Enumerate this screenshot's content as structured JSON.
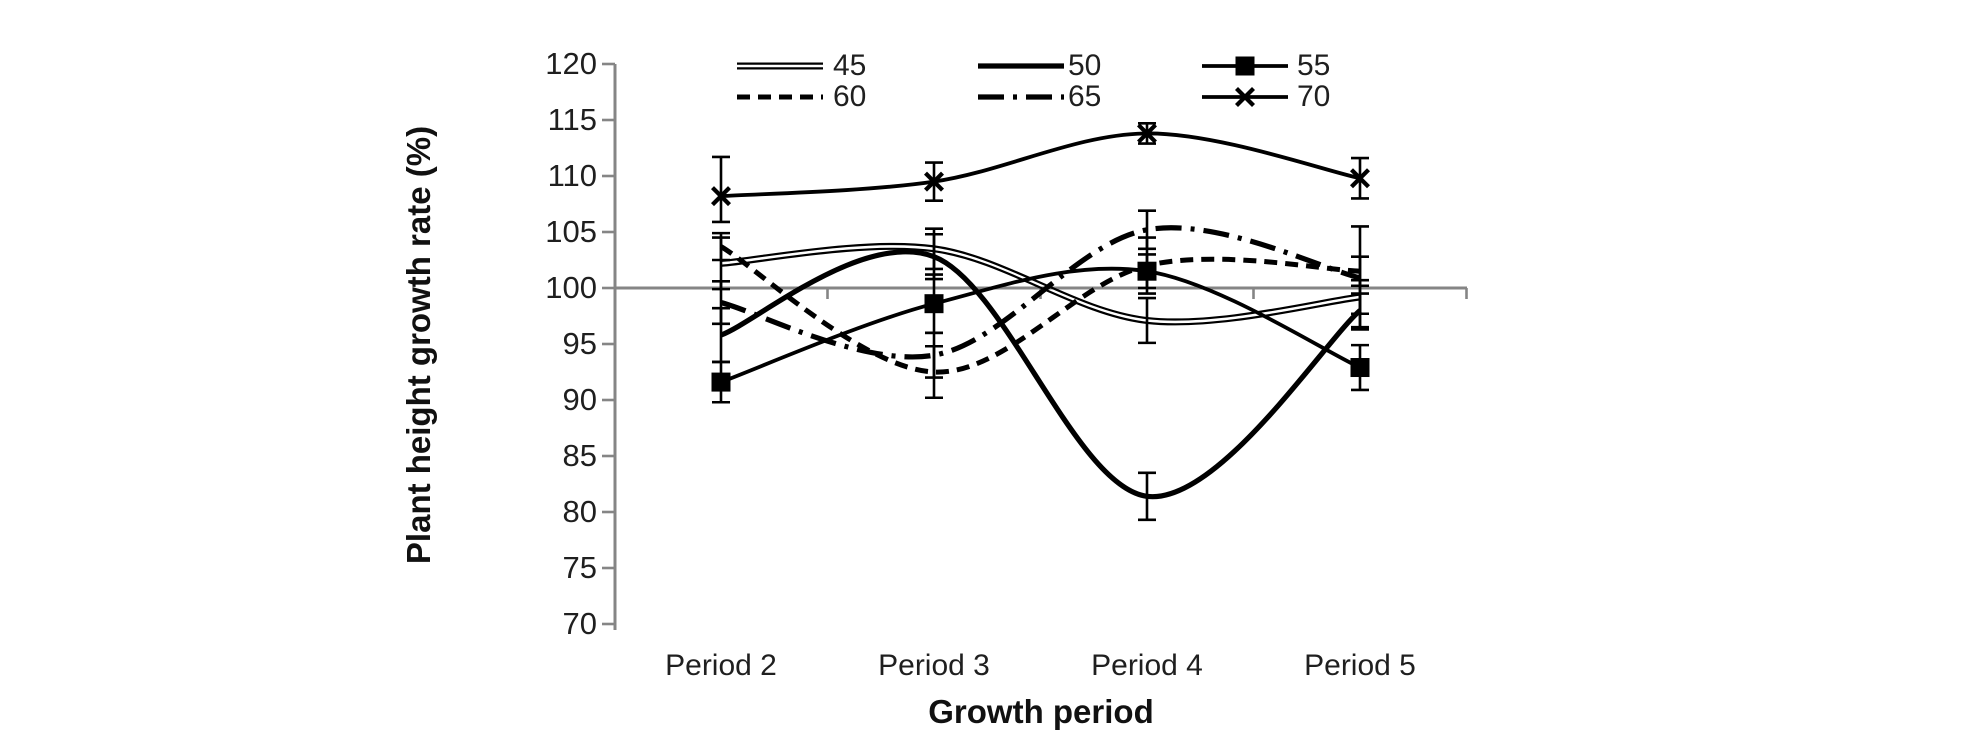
{
  "chart_data": {
    "type": "line",
    "title": "",
    "xlabel": "Growth period",
    "ylabel": "Plant height growth rate (%)",
    "categories": [
      "Period 2",
      "Period 3",
      "Period 4",
      "Period 5"
    ],
    "yticks": [
      120,
      115,
      110,
      105,
      100,
      95,
      90,
      85,
      80,
      75,
      70
    ],
    "ylim": [
      70,
      120
    ],
    "reference_line": 100,
    "grid": false,
    "legend_position": "top-inside",
    "legend_rows": [
      [
        "45",
        "50",
        "55"
      ],
      [
        "60",
        "65",
        "70"
      ]
    ],
    "series": [
      {
        "name": "45",
        "style": "double-solid",
        "marker": "none",
        "values": [
          102.2,
          103.5,
          97.1,
          99.2
        ],
        "errors": [
          2.3,
          1.8,
          2.0,
          1.5
        ]
      },
      {
        "name": "50",
        "style": "solid-thick",
        "marker": "none",
        "values": [
          95.8,
          102.8,
          81.4,
          98.0
        ],
        "errors": [
          2.4,
          2.0,
          2.1,
          1.5
        ]
      },
      {
        "name": "55",
        "style": "solid",
        "marker": "square",
        "values": [
          91.6,
          98.6,
          101.5,
          92.9
        ],
        "errors": [
          1.8,
          2.6,
          1.5,
          2.0
        ]
      },
      {
        "name": "60",
        "style": "dashed",
        "marker": "none",
        "values": [
          103.7,
          92.5,
          102.0,
          101.5
        ],
        "errors": [
          1.2,
          2.3,
          2.5,
          1.3
        ]
      },
      {
        "name": "65",
        "style": "dash-dot",
        "marker": "none",
        "values": [
          98.7,
          94.0,
          105.2,
          100.9
        ],
        "errors": [
          1.9,
          2.0,
          1.7,
          4.6
        ]
      },
      {
        "name": "70",
        "style": "solid",
        "marker": "x",
        "values": [
          108.2,
          109.5,
          113.8,
          109.8
        ],
        "errors": [
          [
            3.5,
            2.3
          ],
          1.7,
          0.9,
          1.8
        ]
      }
    ],
    "colors": {
      "line": "#000000",
      "axis": "#858585",
      "text": "#1f1f1f",
      "background": "#ffffff"
    }
  }
}
